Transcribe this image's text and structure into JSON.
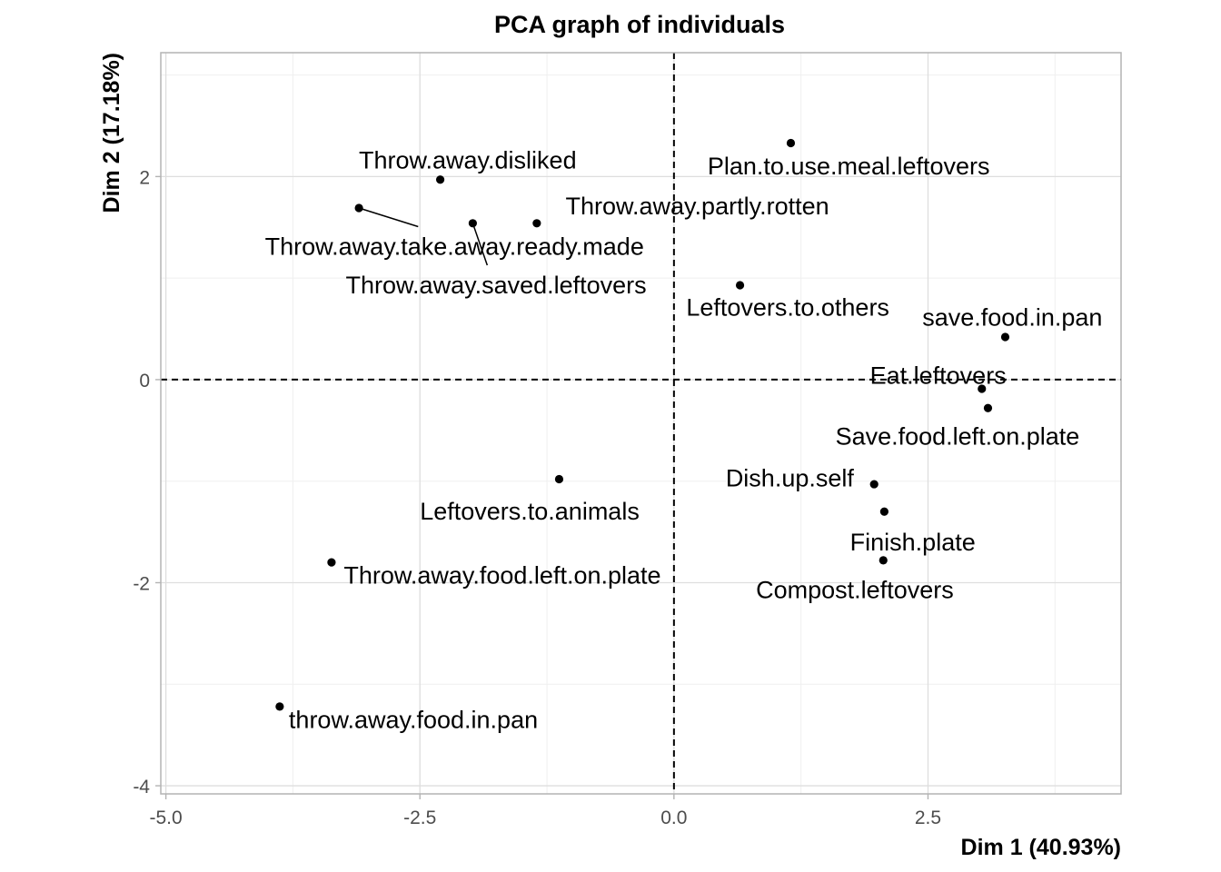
{
  "chart_data": {
    "type": "scatter",
    "title": "PCA graph of individuals",
    "xlabel": "Dim 1 (40.93%)",
    "ylabel": "Dim 2 (17.18%)",
    "xlim": [
      -5.05,
      4.4
    ],
    "ylim": [
      -4.08,
      3.22
    ],
    "x_ticks": [
      {
        "value": -5.0,
        "label": "-5.0"
      },
      {
        "value": -2.5,
        "label": "-2.5"
      },
      {
        "value": 0.0,
        "label": "0.0"
      },
      {
        "value": 2.5,
        "label": "2.5"
      }
    ],
    "y_ticks": [
      {
        "value": 2,
        "label": "2"
      },
      {
        "value": 0,
        "label": "0"
      },
      {
        "value": -2,
        "label": "-2"
      },
      {
        "value": -4,
        "label": "-4"
      }
    ],
    "grid": true,
    "reference_lines": {
      "x": 0,
      "y": 0
    },
    "points": [
      {
        "label": "Plan.to.use.meal.leftovers",
        "x": 1.15,
        "y": 2.33,
        "label_x": 1.72,
        "label_y": 2.1,
        "anchor": "middle"
      },
      {
        "label": "Throw.away.disliked",
        "x": -2.3,
        "y": 1.97,
        "label_x": -2.03,
        "label_y": 2.16,
        "anchor": "middle"
      },
      {
        "label": "Throw.away.take.away.ready.made",
        "x": -3.1,
        "y": 1.69,
        "label_x": -2.16,
        "label_y": 1.31,
        "anchor": "middle",
        "leader": true
      },
      {
        "label": "Throw.away.saved.leftovers",
        "x": -1.98,
        "y": 1.54,
        "label_x": -1.75,
        "label_y": 0.93,
        "anchor": "middle",
        "leader": true
      },
      {
        "label": "Throw.away.partly.rotten",
        "x": -1.35,
        "y": 1.54,
        "label_x": 0.23,
        "label_y": 1.71,
        "anchor": "middle"
      },
      {
        "label": "Leftovers.to.others",
        "x": 0.65,
        "y": 0.93,
        "label_x": 1.12,
        "label_y": 0.71,
        "anchor": "middle"
      },
      {
        "label": "save.food.in.pan",
        "x": 3.26,
        "y": 0.42,
        "label_x": 3.33,
        "label_y": 0.61,
        "anchor": "middle"
      },
      {
        "label": "Eat.leftovers",
        "x": 3.03,
        "y": -0.09,
        "label_x": 2.6,
        "label_y": 0.04,
        "anchor": "middle"
      },
      {
        "label": "Save.food.left.on.plate",
        "x": 3.09,
        "y": -0.28,
        "label_x": 2.79,
        "label_y": -0.56,
        "anchor": "middle"
      },
      {
        "label": "Dish.up.self",
        "x": 1.97,
        "y": -1.03,
        "label_x": 1.14,
        "label_y": -0.97,
        "anchor": "middle"
      },
      {
        "label": "Leftovers.to.animals",
        "x": -1.13,
        "y": -0.98,
        "label_x": -1.42,
        "label_y": -1.3,
        "anchor": "middle"
      },
      {
        "label": "Finish.plate",
        "x": 2.07,
        "y": -1.3,
        "label_x": 2.35,
        "label_y": -1.6,
        "anchor": "middle"
      },
      {
        "label": "Compost.leftovers",
        "x": 2.06,
        "y": -1.78,
        "label_x": 1.78,
        "label_y": -2.07,
        "anchor": "middle"
      },
      {
        "label": "Throw.away.food.left.on.plate",
        "x": -3.37,
        "y": -1.8,
        "label_x": -3.25,
        "label_y": -1.93,
        "anchor": "start"
      },
      {
        "label": "throw.away.food.in.pan",
        "x": -3.88,
        "y": -3.22,
        "label_x": -3.79,
        "label_y": -3.35,
        "anchor": "start"
      }
    ]
  }
}
